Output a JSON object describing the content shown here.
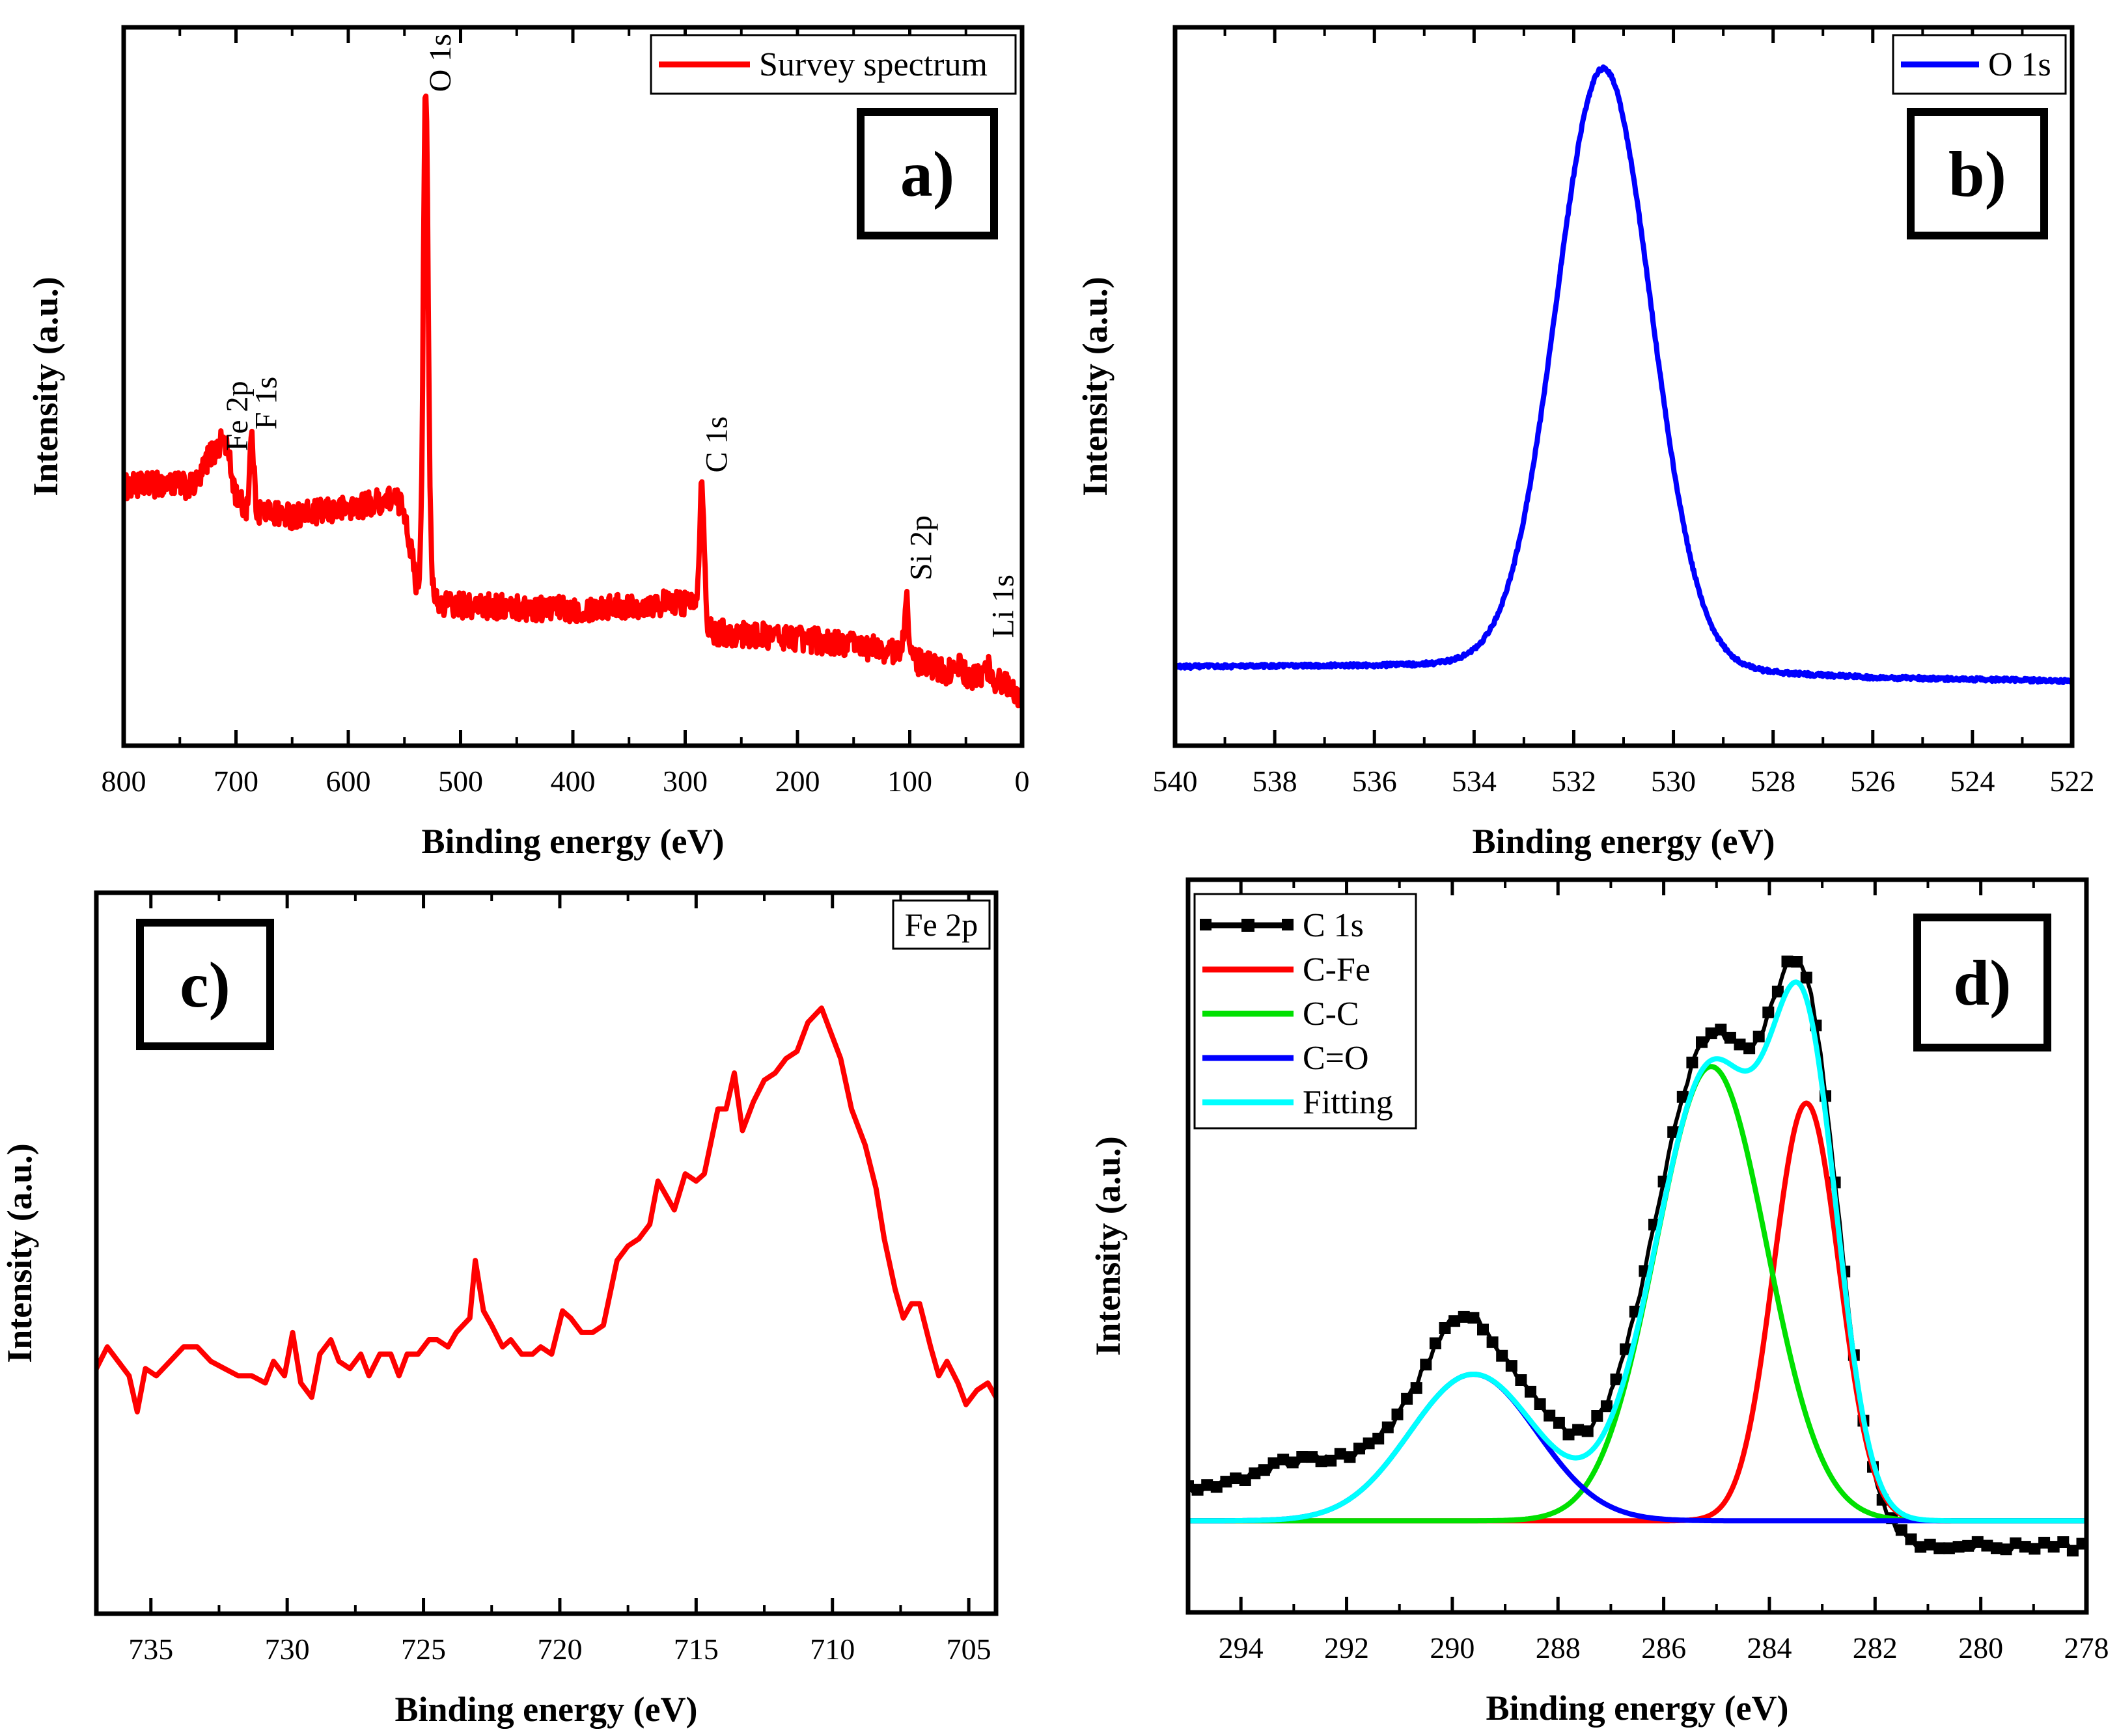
{
  "figure": {
    "panels": [
      "a",
      "b",
      "c",
      "d"
    ]
  },
  "chart_data": [
    {
      "id": "a",
      "type": "line",
      "panel_label": "a)",
      "xlabel": "Binding energy (eV)",
      "ylabel": "Intensity (a.u.)",
      "xlim": [
        800,
        0
      ],
      "ylim": [
        0,
        100
      ],
      "xticks": [
        800,
        700,
        600,
        500,
        400,
        300,
        200,
        100,
        0
      ],
      "y_ticks_shown": false,
      "legend": {
        "position": "top-right",
        "entries": [
          {
            "label": "Survey spectrum",
            "color": "#ff0000"
          }
        ]
      },
      "series": [
        {
          "name": "Survey spectrum",
          "color": "#ff0000",
          "noise": 1.8,
          "base": [
            [
              800,
              36
            ],
            [
              760,
              36.5
            ],
            [
              740,
              36
            ],
            [
              720,
              37
            ],
            [
              710,
              37.5
            ],
            [
              700,
              34
            ],
            [
              690,
              33
            ],
            [
              650,
              32
            ],
            [
              600,
              33
            ],
            [
              560,
              34.5
            ],
            [
              550,
              33
            ],
            [
              545,
              28
            ],
            [
              540,
              23
            ],
            [
              534,
              22
            ],
            [
              532,
              30
            ],
            [
              528,
              22
            ],
            [
              520,
              20
            ],
            [
              500,
              19.5
            ],
            [
              400,
              19
            ],
            [
              300,
              20
            ],
            [
              290,
              20
            ],
            [
              282,
              16
            ],
            [
              250,
              15.5
            ],
            [
              200,
              15
            ],
            [
              150,
              14
            ],
            [
              110,
              13
            ],
            [
              100,
              12
            ],
            [
              60,
              10
            ],
            [
              20,
              9
            ],
            [
              0,
              7
            ]
          ],
          "peaks": [
            {
              "center": 531,
              "height": 64,
              "width": 2.2
            },
            {
              "center": 711,
              "height": 5,
              "width": 6
            },
            {
              "center": 724,
              "height": 3,
              "width": 5
            },
            {
              "center": 686,
              "height": 10,
              "width": 1.8
            },
            {
              "center": 285,
              "height": 19,
              "width": 2.2
            },
            {
              "center": 103,
              "height": 9,
              "width": 1.8
            },
            {
              "center": 55,
              "height": 1.5,
              "width": 2
            },
            {
              "center": 30,
              "height": 1.5,
              "width": 3
            }
          ]
        }
      ],
      "annotations": [
        {
          "text": "O 1s",
          "x": 531,
          "y": 91,
          "rotate": true
        },
        {
          "text": "Fe 2p",
          "x": 712,
          "y": 41,
          "rotate": true
        },
        {
          "text": "F 1s",
          "x": 686,
          "y": 44,
          "rotate": true
        },
        {
          "text": "C 1s",
          "x": 285,
          "y": 38,
          "rotate": true
        },
        {
          "text": "Si 2p",
          "x": 103,
          "y": 23,
          "rotate": true
        },
        {
          "text": "Li 1s",
          "x": 30,
          "y": 15,
          "rotate": true
        }
      ]
    },
    {
      "id": "b",
      "type": "line",
      "panel_label": "b)",
      "xlabel": "Binding energy (eV)",
      "ylabel": "Intensity (a.u.)",
      "xlim": [
        540,
        522
      ],
      "ylim": [
        0,
        100
      ],
      "xticks": [
        540,
        538,
        536,
        534,
        532,
        530,
        528,
        526,
        524,
        522
      ],
      "y_ticks_shown": false,
      "legend": {
        "position": "top-right",
        "entries": [
          {
            "label": "O 1s",
            "color": "#0000ff"
          }
        ]
      },
      "series": [
        {
          "name": "O 1s",
          "color": "#0000ff",
          "noise": 0.25,
          "base": [
            [
              540,
              11
            ],
            [
              536,
              11.2
            ],
            [
              534,
              11.5
            ],
            [
              532,
              11.5
            ],
            [
              529,
              10.5
            ],
            [
              526,
              9.5
            ],
            [
              522,
              9
            ]
          ],
          "peaks": [
            {
              "center": 531.4,
              "height": 83,
              "width": 0.95
            }
          ]
        }
      ],
      "annotations": []
    },
    {
      "id": "c",
      "type": "line",
      "panel_label": "c)",
      "xlabel": "Binding energy (eV)",
      "ylabel": "Intensity (a.u.)",
      "xlim": [
        737,
        704
      ],
      "ylim": [
        0,
        100
      ],
      "xticks": [
        735,
        730,
        725,
        720,
        715,
        710,
        705
      ],
      "y_ticks_shown": false,
      "legend": {
        "position": "top-right",
        "entries": [
          {
            "label": "Fe 2p",
            "color": "#ff0000"
          }
        ]
      },
      "series": [
        {
          "name": "Fe 2p",
          "color": "#ff0000",
          "points": [
            [
              737,
              34
            ],
            [
              736.6,
              37
            ],
            [
              736.2,
              35
            ],
            [
              735.8,
              33
            ],
            [
              735.5,
              28
            ],
            [
              735.2,
              34
            ],
            [
              734.8,
              33
            ],
            [
              734.3,
              35
            ],
            [
              733.8,
              37
            ],
            [
              733.3,
              37
            ],
            [
              732.8,
              35
            ],
            [
              732.3,
              34
            ],
            [
              731.8,
              33
            ],
            [
              731.3,
              33
            ],
            [
              730.8,
              32
            ],
            [
              730.5,
              35
            ],
            [
              730.1,
              33
            ],
            [
              729.8,
              39
            ],
            [
              729.5,
              32
            ],
            [
              729.1,
              30
            ],
            [
              728.8,
              36
            ],
            [
              728.4,
              38
            ],
            [
              728.1,
              35
            ],
            [
              727.7,
              34
            ],
            [
              727.3,
              36
            ],
            [
              727,
              33
            ],
            [
              726.6,
              36
            ],
            [
              726.2,
              36
            ],
            [
              725.9,
              33
            ],
            [
              725.6,
              36
            ],
            [
              725.2,
              36
            ],
            [
              724.8,
              38
            ],
            [
              724.5,
              38
            ],
            [
              724.1,
              37
            ],
            [
              723.8,
              39
            ],
            [
              723.3,
              41
            ],
            [
              723.1,
              49
            ],
            [
              722.8,
              42
            ],
            [
              722.5,
              40
            ],
            [
              722.1,
              37
            ],
            [
              721.8,
              38
            ],
            [
              721.4,
              36
            ],
            [
              721,
              36
            ],
            [
              720.7,
              37
            ],
            [
              720.3,
              36
            ],
            [
              719.9,
              42
            ],
            [
              719.6,
              41
            ],
            [
              719.2,
              39
            ],
            [
              718.8,
              39
            ],
            [
              718.4,
              40
            ],
            [
              717.9,
              49
            ],
            [
              717.5,
              51
            ],
            [
              717.1,
              52
            ],
            [
              716.7,
              54
            ],
            [
              716.4,
              60
            ],
            [
              716.1,
              58
            ],
            [
              715.8,
              56
            ],
            [
              715.4,
              61
            ],
            [
              715,
              60
            ],
            [
              714.7,
              61
            ],
            [
              714.2,
              70
            ],
            [
              713.9,
              70
            ],
            [
              713.6,
              75
            ],
            [
              713.3,
              67
            ],
            [
              712.9,
              71
            ],
            [
              712.5,
              74
            ],
            [
              712.1,
              75
            ],
            [
              711.7,
              77
            ],
            [
              711.3,
              78
            ],
            [
              710.9,
              82
            ],
            [
              710.4,
              84
            ],
            [
              710.1,
              81
            ],
            [
              709.7,
              77
            ],
            [
              709.3,
              70
            ],
            [
              708.8,
              65
            ],
            [
              708.4,
              59
            ],
            [
              708.1,
              52
            ],
            [
              707.7,
              45
            ],
            [
              707.4,
              41
            ],
            [
              707.1,
              43
            ],
            [
              706.8,
              43
            ],
            [
              706.4,
              37
            ],
            [
              706.1,
              33
            ],
            [
              705.8,
              35
            ],
            [
              705.4,
              32
            ],
            [
              705.1,
              29
            ],
            [
              704.7,
              31
            ],
            [
              704.3,
              32
            ],
            [
              704,
              30
            ]
          ]
        }
      ],
      "annotations": []
    },
    {
      "id": "d",
      "type": "line",
      "panel_label": "d)",
      "xlabel": "Binding energy (eV)",
      "ylabel": "Intensity (a.u.)",
      "xlim": [
        295,
        278
      ],
      "ylim": [
        0,
        100
      ],
      "xticks": [
        294,
        292,
        290,
        288,
        286,
        284,
        282,
        280,
        278
      ],
      "y_ticks_shown": false,
      "legend": {
        "position": "top-left",
        "entries": [
          {
            "label": "C 1s",
            "color": "#000000",
            "marker": true
          },
          {
            "label": "C-Fe",
            "color": "#ff0000"
          },
          {
            "label": "C-C",
            "color": "#00e000"
          },
          {
            "label": "C=O",
            "color": "#0000ff"
          },
          {
            "label": "Fitting",
            "color": "#00ffff"
          }
        ]
      },
      "baseline": 12.5,
      "components": [
        {
          "name": "C-Fe",
          "color": "#ff0000",
          "center": 283.3,
          "height": 57,
          "width": 0.62
        },
        {
          "name": "C-C",
          "color": "#00e000",
          "center": 285.1,
          "height": 62,
          "width": 1.05
        },
        {
          "name": "C=O",
          "color": "#0000ff",
          "center": 289.6,
          "height": 20,
          "width": 1.2
        }
      ],
      "fit": {
        "name": "Fitting",
        "color": "#00ffff"
      },
      "data_series": {
        "name": "C 1s",
        "color": "#000000",
        "bg_left": 16,
        "bg_right": 9,
        "bump": {
          "center": 292.8,
          "height": 4,
          "width": 0.9
        },
        "extra": {
          "center": 289.9,
          "height": 5,
          "width": 0.5
        },
        "noise": 0.6,
        "step": 0.09
      },
      "annotations": []
    }
  ]
}
